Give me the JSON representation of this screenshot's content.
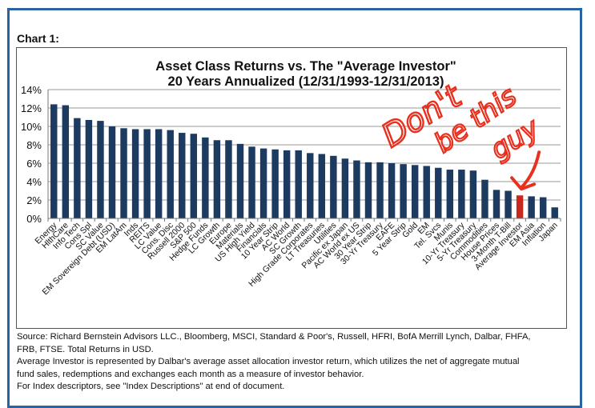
{
  "page": {
    "chart_label": "Chart 1:",
    "notes": [
      "Source: Richard Bernstein Advisors LLC., Bloomberg, MSCI, Standard & Poor's, Russell, HFRI, BofA Merrill Lynch, Dalbar, FHFA,",
      "FRB, FTSE.  Total Returns in USD.",
      "Average Investor is represented by Dalbar's average asset allocation investor return, which utilizes the net of aggregate mutual",
      "fund sales, redemptions and exchanges each month as a measure of investor behavior.",
      "For Index descriptors, see \"Index Descriptions\" at end of document."
    ],
    "annotation": {
      "lines": [
        "Don't",
        "be this",
        "guy"
      ],
      "color": "#e8301e"
    }
  },
  "chart_data": {
    "type": "bar",
    "title": "Asset Class Returns vs. The \"Average Investor\"",
    "subtitle": "20 Years Annualized (12/31/1993-12/31/2013)",
    "xlabel": "",
    "ylabel": "",
    "ylim": [
      0,
      14
    ],
    "yticks": [
      0,
      2,
      4,
      6,
      8,
      10,
      12,
      14
    ],
    "ytick_labels": [
      "0%",
      "2%",
      "4%",
      "6%",
      "8%",
      "10%",
      "12%",
      "14%"
    ],
    "grid": true,
    "legend": "none",
    "colors": {
      "default": "#1d3a60",
      "highlight": "#c9281d"
    },
    "highlight": "Average Investor",
    "categories": [
      "Energy",
      "HlthCare",
      "Info Tech",
      "Cons Spl",
      "SC Value",
      "EM Sovereign Debt (USD)",
      "EM LatAm",
      "Inds",
      "REITS",
      "LC Value",
      "Cons. Disc",
      "Russell 2000",
      "S&P 500",
      "Hedge Funds",
      "LC Growth",
      "Europe",
      "Materials",
      "US High Yield",
      "Financials",
      "10 Year Strip",
      "AC World",
      "SC Growth",
      "High Grade Corporates",
      "LT Treasuries",
      "Utilities",
      "Pacific ex Japan",
      "AC World ex US",
      "30 Year Strip",
      "30-Yr Treasury",
      "EAFE",
      "5 Year Strip",
      "Gold",
      "EM",
      "Tel. Svcs",
      "Munis",
      "10-Yr Treasury",
      "5-Yr Treasury",
      "Commodities",
      "House Prices",
      "3-Month T-Bill",
      "Average Investor",
      "EM Asia",
      "Inflation",
      "Japan"
    ],
    "values": [
      12.4,
      12.3,
      10.9,
      10.7,
      10.6,
      10.0,
      9.8,
      9.7,
      9.7,
      9.7,
      9.6,
      9.3,
      9.2,
      8.8,
      8.5,
      8.5,
      8.1,
      7.8,
      7.6,
      7.5,
      7.4,
      7.4,
      7.1,
      7.0,
      6.8,
      6.5,
      6.3,
      6.1,
      6.1,
      6.0,
      5.9,
      5.8,
      5.7,
      5.5,
      5.3,
      5.3,
      5.2,
      4.2,
      3.1,
      3.0,
      2.5,
      2.4,
      2.3,
      1.2
    ]
  }
}
